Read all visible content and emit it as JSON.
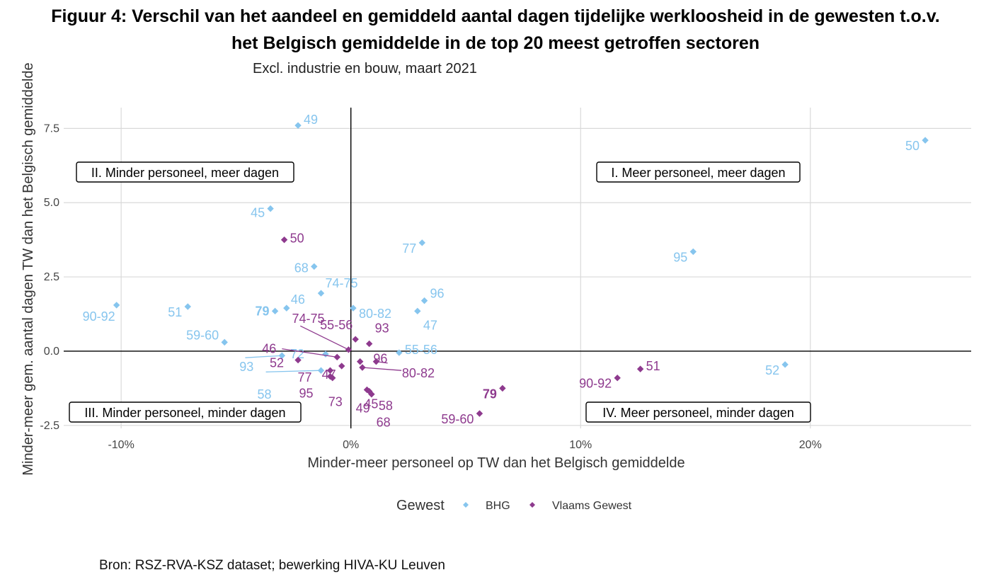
{
  "title_line1": "Figuur 4: Verschil van het aandeel en gemiddeld aantal dagen tijdelijke werkloosheid in de gewesten t.o.v.",
  "title_line2": "het Belgisch gemiddelde in de top 20 meest getroffen sectoren",
  "subtitle": "Excl. industrie en bouw, maart 2021",
  "source": "Bron: RSZ-RVA-KSZ dataset; bewerking HIVA-KU Leuven",
  "chart_data": {
    "type": "scatter",
    "xlabel": "Minder-meer personeel op TW dan het Belgisch gemiddelde",
    "ylabel": "Minder-meer gem. aantal dagen TW dan het Belgisch gemiddelde",
    "xlim": [
      -12.5,
      27
    ],
    "ylim": [
      -2.6,
      8.2
    ],
    "xticks": [
      -10,
      0,
      10,
      20
    ],
    "xtick_labels": [
      "-10%",
      "0%",
      "10%",
      "20%"
    ],
    "yticks": [
      -2.5,
      0,
      2.5,
      5,
      7.5
    ],
    "ytick_labels": [
      "-2.5",
      "0.0",
      "2.5",
      "5.0",
      "7.5"
    ],
    "grid": true,
    "legend": {
      "title": "Gewest",
      "position": "bottom"
    },
    "quadrant_labels": [
      "I. Meer personeel, meer dagen",
      "II. Minder personeel, meer dagen",
      "III. Minder personeel, minder dagen",
      "IV. Meer personeel, minder dagen"
    ],
    "series": [
      {
        "name": "BHG",
        "color": "#86C5EE",
        "points": [
          {
            "label": "49",
            "x": -2.3,
            "y": 7.6
          },
          {
            "label": "50",
            "x": 25.0,
            "y": 7.1
          },
          {
            "label": "45",
            "x": -3.5,
            "y": 4.8
          },
          {
            "label": "77",
            "x": 3.1,
            "y": 3.65
          },
          {
            "label": "95",
            "x": 14.9,
            "y": 3.35
          },
          {
            "label": "68",
            "x": -1.6,
            "y": 2.85
          },
          {
            "label": "74-75",
            "x": -1.3,
            "y": 1.95
          },
          {
            "label": "96",
            "x": 3.2,
            "y": 1.7
          },
          {
            "label": "90-92",
            "x": -10.2,
            "y": 1.55
          },
          {
            "label": "51",
            "x": -7.1,
            "y": 1.5
          },
          {
            "label": "46",
            "x": -2.8,
            "y": 1.45
          },
          {
            "label": "80-82",
            "x": 0.1,
            "y": 1.45
          },
          {
            "label": "79",
            "x": -3.3,
            "y": 1.35,
            "bold": true
          },
          {
            "label": "47",
            "x": 2.9,
            "y": 1.35
          },
          {
            "label": "59-60",
            "x": -5.5,
            "y": 0.3
          },
          {
            "label": "55-56",
            "x": 2.1,
            "y": -0.05
          },
          {
            "label": "72",
            "x": -1.1,
            "y": -0.1
          },
          {
            "label": "93",
            "x": -3.0,
            "y": -0.15
          },
          {
            "label": "58",
            "x": -1.3,
            "y": -0.65
          },
          {
            "label": "52",
            "x": 18.9,
            "y": -0.45
          }
        ]
      },
      {
        "name": "Vlaams Gewest",
        "color": "#8E3A8E",
        "points": [
          {
            "label": "50",
            "x": -2.9,
            "y": 3.75
          },
          {
            "label": "74-75",
            "x": -0.1,
            "y": 0.05
          },
          {
            "label": "55-56",
            "x": 0.2,
            "y": 0.4
          },
          {
            "label": "93",
            "x": 0.8,
            "y": 0.25
          },
          {
            "label": "46",
            "x": -0.6,
            "y": -0.2
          },
          {
            "label": "96",
            "x": 1.1,
            "y": -0.35
          },
          {
            "label": "80-82",
            "x": 0.5,
            "y": -0.55
          },
          {
            "label": "52",
            "x": -2.3,
            "y": -0.3
          },
          {
            "label": "47",
            "x": -0.4,
            "y": -0.5
          },
          {
            "label": "77",
            "x": -0.9,
            "y": -0.65
          },
          {
            "label": "95",
            "x": -0.9,
            "y": -0.85
          },
          {
            "label": "73",
            "x": -0.8,
            "y": -0.9
          },
          {
            "label": "45",
            "x": 0.7,
            "y": -1.3
          },
          {
            "label": "58",
            "x": 0.9,
            "y": -1.45
          },
          {
            "label": "68",
            "x": 0.8,
            "y": -1.35
          },
          {
            "label": "49",
            "x": 0.4,
            "y": -0.35
          },
          {
            "label": "79",
            "x": 6.6,
            "y": -1.25,
            "bold": true
          },
          {
            "label": "59-60",
            "x": 5.6,
            "y": -2.1
          },
          {
            "label": "90-92",
            "x": 11.6,
            "y": -0.9
          },
          {
            "label": "51",
            "x": 12.6,
            "y": -0.6
          }
        ]
      }
    ]
  }
}
